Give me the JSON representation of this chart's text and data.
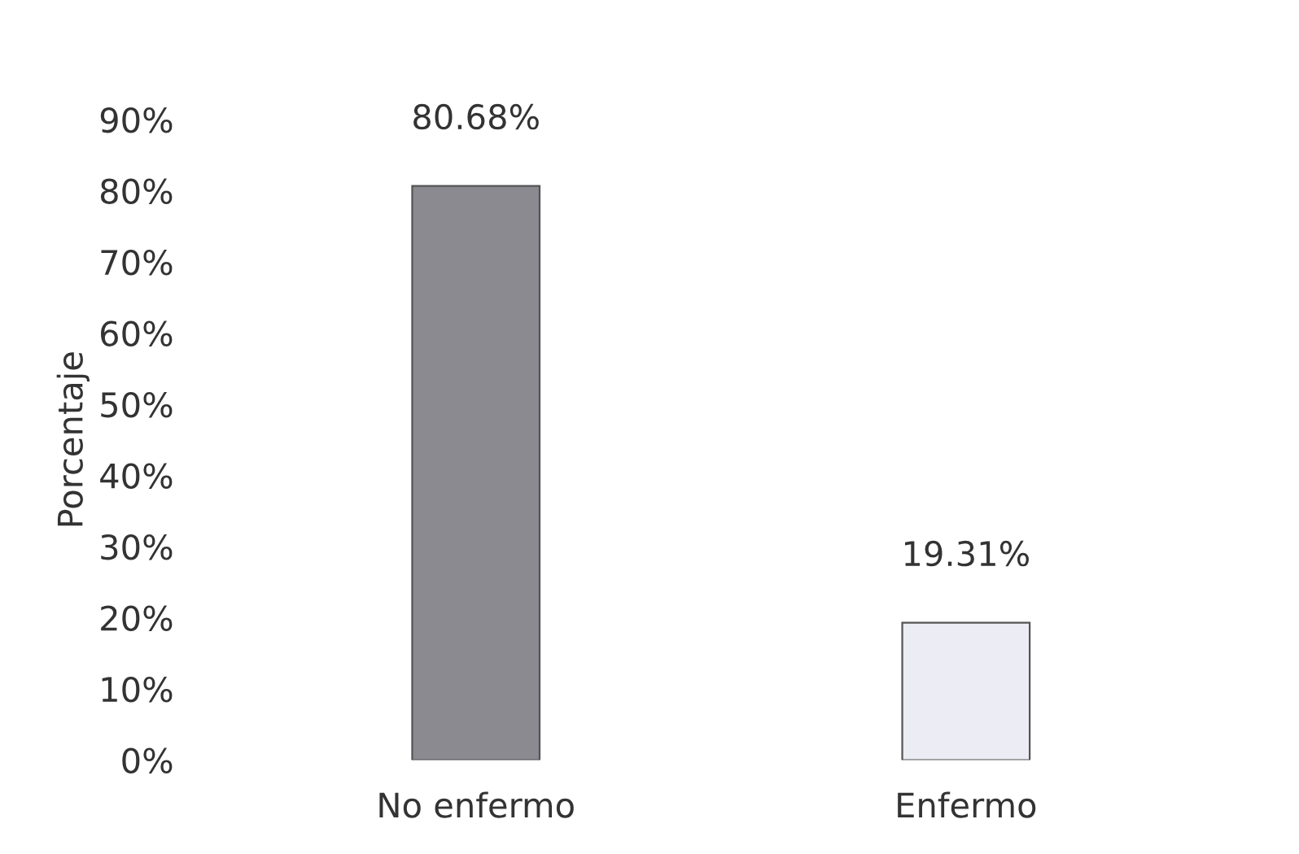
{
  "chart_data": {
    "type": "bar",
    "ylabel": "Porcentaje",
    "categories": [
      "No enfermo",
      "Enfermo"
    ],
    "values": [
      80.68,
      19.31
    ],
    "colors": [
      "#8a8a90",
      "#ececf4"
    ],
    "value_labels": [
      "80.68%",
      "19.31%"
    ],
    "ylim": [
      0,
      90
    ],
    "yticks": [
      {
        "value": 0,
        "label": "0%"
      },
      {
        "value": 10,
        "label": "10%"
      },
      {
        "value": 20,
        "label": "20%"
      },
      {
        "value": 30,
        "label": "30%"
      },
      {
        "value": 40,
        "label": "40%"
      },
      {
        "value": 50,
        "label": "50%"
      },
      {
        "value": 60,
        "label": "60%"
      },
      {
        "value": 70,
        "label": "70%"
      },
      {
        "value": 80,
        "label": "80%"
      },
      {
        "value": 90,
        "label": "90%"
      }
    ],
    "grid": false,
    "legend": false
  }
}
